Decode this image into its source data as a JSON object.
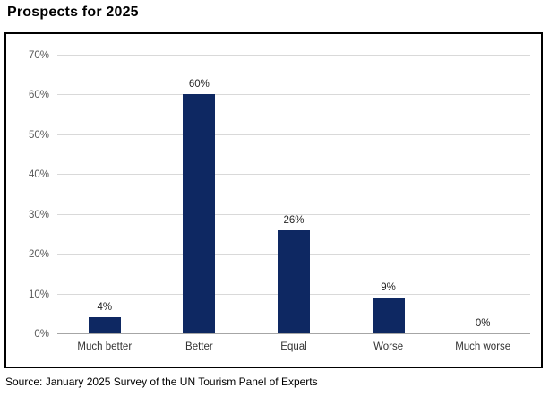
{
  "title": "Prospects for 2025",
  "source": "Source: January 2025 Survey of the UN Tourism Panel of Experts",
  "chart_data": {
    "type": "bar",
    "title": "Prospects for 2025",
    "categories": [
      "Much better",
      "Better",
      "Equal",
      "Worse",
      "Much worse"
    ],
    "values": [
      4,
      60,
      26,
      9,
      0
    ],
    "data_labels": [
      "4%",
      "60%",
      "26%",
      "9%",
      "0%"
    ],
    "xlabel": "",
    "ylabel": "",
    "ylim": [
      0,
      70
    ],
    "y_tick_values": [
      0,
      10,
      20,
      30,
      40,
      50,
      60,
      70
    ],
    "y_tick_labels": [
      "0%",
      "10%",
      "20%",
      "30%",
      "40%",
      "50%",
      "60%",
      "70%"
    ],
    "grid": true,
    "legend": false,
    "bar_color": "#0e2862",
    "gridline_color": "#d9d9d9",
    "axis_line_color": "#a6a6a6",
    "tick_label_color": "#595959",
    "label_color": "#262626"
  }
}
